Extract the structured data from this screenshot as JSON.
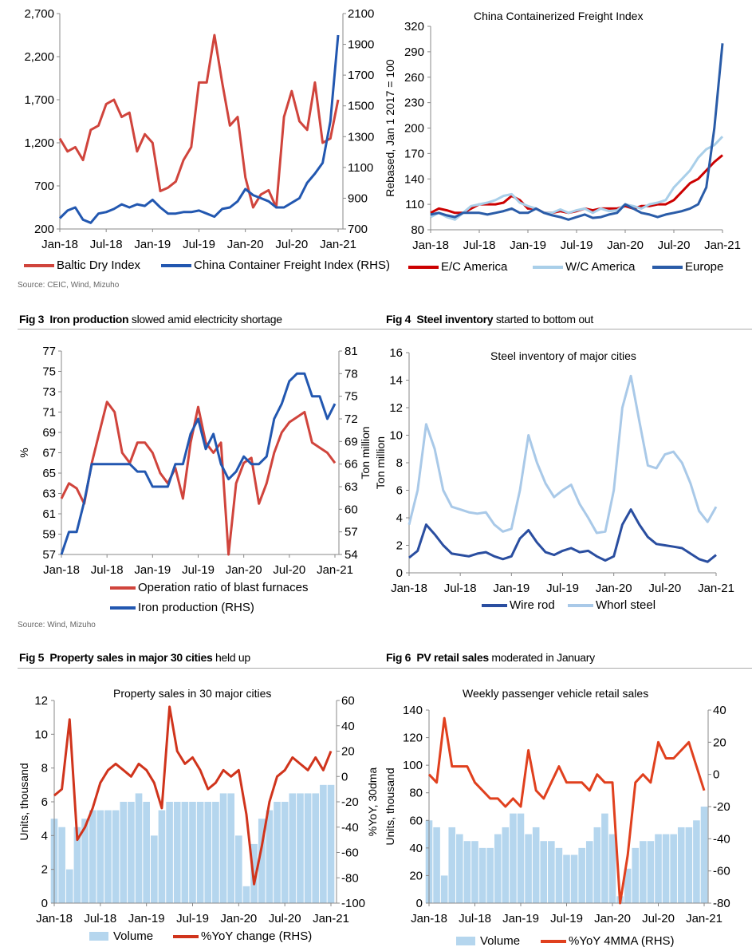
{
  "figures": {
    "fig1_source": "Source: CEIC, Wind, Mizuho",
    "fig3": {
      "num": "Fig 3",
      "bold": "Iron production",
      "rest": "slowed amid electricity shortage"
    },
    "fig4": {
      "num": "Fig 4",
      "bold": "Steel inventory",
      "rest": "started to bottom out"
    },
    "fig3_source": "Source: Wind, Mizuho",
    "fig5": {
      "num": "Fig 5",
      "bold": "Property sales in major 30 cities",
      "rest": "held up"
    },
    "fig6": {
      "num": "Fig 6",
      "bold": "PV retail sales",
      "rest": "moderated in January"
    }
  },
  "colors": {
    "red": "#d0443c",
    "blue": "#2257b0",
    "light_blue": "#a9cfe9",
    "dark_red": "#cc0000",
    "bar_blue": "#b5d6ee",
    "orange_red": "#e0401e"
  },
  "chart_data": [
    {
      "type": "line",
      "title": "",
      "xticks": [
        "Jan-18",
        "Jul-18",
        "Jan-19",
        "Jul-19",
        "Jan-20",
        "Jul-20",
        "Jan-21"
      ],
      "x": [
        "2018-01",
        "2018-02",
        "2018-03",
        "2018-04",
        "2018-05",
        "2018-06",
        "2018-07",
        "2018-08",
        "2018-09",
        "2018-10",
        "2018-11",
        "2018-12",
        "2019-01",
        "2019-02",
        "2019-03",
        "2019-04",
        "2019-05",
        "2019-06",
        "2019-07",
        "2019-08",
        "2019-09",
        "2019-10",
        "2019-11",
        "2019-12",
        "2020-01",
        "2020-02",
        "2020-03",
        "2020-04",
        "2020-05",
        "2020-06",
        "2020-07",
        "2020-08",
        "2020-09",
        "2020-10",
        "2020-11",
        "2020-12",
        "2021-01"
      ],
      "ylim": [
        200,
        2700
      ],
      "ytick_labels": [
        "200",
        "700",
        "1,200",
        "1,700",
        "2,200",
        "2,700"
      ],
      "y2lim": [
        700,
        2100
      ],
      "y2tick_labels": [
        "700",
        "900",
        "1100",
        "1300",
        "1500",
        "1700",
        "1900",
        "2100"
      ],
      "series": [
        {
          "name": "Baltic Dry Index",
          "axis": "left",
          "color": "#d0443c",
          "values": [
            1250,
            1100,
            1150,
            1000,
            1350,
            1400,
            1650,
            1700,
            1500,
            1550,
            1100,
            1300,
            1200,
            640,
            680,
            750,
            1000,
            1150,
            1900,
            1900,
            2450,
            1900,
            1400,
            1500,
            800,
            450,
            600,
            650,
            450,
            1500,
            1800,
            1450,
            1350,
            1900,
            1200,
            1250,
            1700
          ]
        },
        {
          "name": "China Container Freight Index (RHS)",
          "axis": "right",
          "color": "#2257b0",
          "values": [
            770,
            820,
            840,
            760,
            740,
            800,
            810,
            830,
            860,
            840,
            860,
            850,
            890,
            840,
            800,
            800,
            810,
            810,
            820,
            800,
            780,
            830,
            840,
            880,
            960,
            920,
            900,
            880,
            840,
            840,
            870,
            900,
            1000,
            1060,
            1130,
            1400,
            1960
          ]
        }
      ]
    },
    {
      "type": "line",
      "title": "China Containerized Freight Index",
      "ylabel": "Rebased, Jan 1 2017 = 100",
      "xticks": [
        "Jan-18",
        "Jul-18",
        "Jan-19",
        "Jul-19",
        "Jan-20",
        "Jul-20",
        "Jan-21"
      ],
      "x": [
        "2018-01",
        "2018-02",
        "2018-03",
        "2018-04",
        "2018-05",
        "2018-06",
        "2018-07",
        "2018-08",
        "2018-09",
        "2018-10",
        "2018-11",
        "2018-12",
        "2019-01",
        "2019-02",
        "2019-03",
        "2019-04",
        "2019-05",
        "2019-06",
        "2019-07",
        "2019-08",
        "2019-09",
        "2019-10",
        "2019-11",
        "2019-12",
        "2020-01",
        "2020-02",
        "2020-03",
        "2020-04",
        "2020-05",
        "2020-06",
        "2020-07",
        "2020-08",
        "2020-09",
        "2020-10",
        "2020-11",
        "2020-12",
        "2021-01"
      ],
      "ylim": [
        80,
        320
      ],
      "ytick_labels": [
        "80",
        "110",
        "140",
        "170",
        "200",
        "230",
        "260",
        "290",
        "320"
      ],
      "series": [
        {
          "name": "E/C America",
          "axis": "left",
          "color": "#cc0000",
          "values": [
            100,
            105,
            103,
            100,
            100,
            105,
            110,
            110,
            110,
            112,
            120,
            115,
            105,
            105,
            100,
            100,
            102,
            100,
            102,
            105,
            103,
            105,
            105,
            105,
            108,
            105,
            108,
            108,
            110,
            110,
            115,
            125,
            135,
            140,
            150,
            160,
            168
          ]
        },
        {
          "name": "W/C America",
          "axis": "left",
          "color": "#a9cfe9",
          "values": [
            95,
            100,
            95,
            92,
            100,
            108,
            110,
            112,
            115,
            120,
            122,
            112,
            108,
            105,
            100,
            100,
            104,
            100,
            103,
            105,
            100,
            105,
            102,
            103,
            110,
            108,
            105,
            110,
            112,
            115,
            130,
            140,
            150,
            165,
            175,
            180,
            190
          ]
        },
        {
          "name": "Europe",
          "axis": "left",
          "color": "#2a5ca8",
          "values": [
            98,
            100,
            97,
            95,
            100,
            100,
            100,
            98,
            100,
            102,
            105,
            100,
            100,
            105,
            100,
            97,
            95,
            92,
            95,
            98,
            94,
            95,
            98,
            100,
            110,
            105,
            100,
            98,
            95,
            98,
            100,
            102,
            105,
            110,
            130,
            200,
            300
          ]
        }
      ]
    },
    {
      "type": "line",
      "title": "",
      "ylabel": "%",
      "y2label": "Ton million",
      "xticks": [
        "Jan-18",
        "Jul-18",
        "Jan-19",
        "Jul-19",
        "Jan-20",
        "Jul-20",
        "Jan-21"
      ],
      "x": [
        "2018-01",
        "2018-02",
        "2018-03",
        "2018-04",
        "2018-05",
        "2018-06",
        "2018-07",
        "2018-08",
        "2018-09",
        "2018-10",
        "2018-11",
        "2018-12",
        "2019-01",
        "2019-02",
        "2019-03",
        "2019-04",
        "2019-05",
        "2019-06",
        "2019-07",
        "2019-08",
        "2019-09",
        "2019-10",
        "2019-11",
        "2019-12",
        "2020-01",
        "2020-02",
        "2020-03",
        "2020-04",
        "2020-05",
        "2020-06",
        "2020-07",
        "2020-08",
        "2020-09",
        "2020-10",
        "2020-11",
        "2020-12",
        "2021-01"
      ],
      "ylim": [
        57,
        77
      ],
      "ytick_labels": [
        "57",
        "59",
        "61",
        "63",
        "65",
        "67",
        "69",
        "71",
        "73",
        "75",
        "77"
      ],
      "y2lim": [
        54,
        81
      ],
      "y2tick_labels": [
        "54",
        "57",
        "60",
        "63",
        "66",
        "69",
        "72",
        "75",
        "78",
        "81"
      ],
      "series": [
        {
          "name": "Operation ratio of blast furnaces",
          "axis": "left",
          "color": "#d0443c",
          "values": [
            62.5,
            64,
            63.5,
            62,
            66,
            69,
            72,
            71,
            67,
            66,
            68,
            68,
            67,
            65,
            64,
            65.5,
            62.5,
            68,
            71.5,
            68,
            67,
            68,
            57,
            64,
            66,
            66.5,
            62,
            64,
            67,
            69,
            70,
            70.5,
            71,
            68,
            67.5,
            67,
            66
          ]
        },
        {
          "name": "Iron production (RHS)",
          "axis": "right",
          "color": "#2257b0",
          "values": [
            54,
            57,
            57,
            61,
            66,
            66,
            66,
            66,
            66,
            66,
            65,
            65,
            63,
            63,
            63,
            66,
            66,
            70,
            72,
            68,
            70,
            66,
            64,
            65,
            67,
            66,
            66,
            67,
            72,
            74,
            77,
            78,
            78,
            75,
            75,
            72,
            74
          ]
        }
      ]
    },
    {
      "type": "line",
      "title": "Steel inventory  of major cities",
      "ylabel": "Ton  million",
      "xticks": [
        "Jan-18",
        "Jul-18",
        "Jan-19",
        "Jul-19",
        "Jan-20",
        "Jul-20",
        "Jan-21"
      ],
      "x": [
        "2018-01",
        "2018-02",
        "2018-03",
        "2018-04",
        "2018-05",
        "2018-06",
        "2018-07",
        "2018-08",
        "2018-09",
        "2018-10",
        "2018-11",
        "2018-12",
        "2019-01",
        "2019-02",
        "2019-03",
        "2019-04",
        "2019-05",
        "2019-06",
        "2019-07",
        "2019-08",
        "2019-09",
        "2019-10",
        "2019-11",
        "2019-12",
        "2020-01",
        "2020-02",
        "2020-03",
        "2020-04",
        "2020-05",
        "2020-06",
        "2020-07",
        "2020-08",
        "2020-09",
        "2020-10",
        "2020-11",
        "2020-12",
        "2021-01"
      ],
      "ylim": [
        0,
        16
      ],
      "ytick_labels": [
        "0",
        "2",
        "4",
        "6",
        "8",
        "10",
        "12",
        "14",
        "16"
      ],
      "series": [
        {
          "name": "Wire rod",
          "axis": "left",
          "color": "#2a4ea0",
          "values": [
            1.1,
            1.6,
            3.5,
            2.8,
            2.0,
            1.4,
            1.3,
            1.2,
            1.4,
            1.5,
            1.2,
            1.0,
            1.2,
            2.5,
            3.1,
            2.2,
            1.5,
            1.3,
            1.6,
            1.8,
            1.5,
            1.6,
            1.2,
            0.9,
            1.2,
            3.5,
            4.6,
            3.5,
            2.6,
            2.1,
            2.0,
            1.9,
            1.8,
            1.4,
            1.0,
            0.8,
            1.3
          ]
        },
        {
          "name": "Whorl steel",
          "axis": "left",
          "color": "#a9c9e8",
          "values": [
            3.5,
            6.0,
            10.8,
            9.0,
            6.0,
            4.8,
            4.6,
            4.4,
            4.3,
            4.4,
            3.5,
            3.0,
            3.2,
            6.0,
            10.0,
            8.0,
            6.5,
            5.5,
            6.0,
            6.4,
            5.0,
            4.0,
            2.9,
            3.0,
            6.0,
            12.0,
            14.3,
            11.0,
            7.8,
            7.6,
            8.6,
            8.8,
            8.0,
            6.5,
            4.5,
            3.7,
            4.8
          ]
        }
      ]
    },
    {
      "type": "bar+line",
      "title": "Property sales in 30 major cities",
      "ylabel": "Units,  thousand",
      "y2label": "%YoY, 30dma",
      "xticks": [
        "Jan-18",
        "Jul-18",
        "Jan-19",
        "Jul-19",
        "Jan-20",
        "Jul-20",
        "Jan-21"
      ],
      "x": [
        "2018-01",
        "2018-02",
        "2018-03",
        "2018-04",
        "2018-05",
        "2018-06",
        "2018-07",
        "2018-08",
        "2018-09",
        "2018-10",
        "2018-11",
        "2018-12",
        "2019-01",
        "2019-02",
        "2019-03",
        "2019-04",
        "2019-05",
        "2019-06",
        "2019-07",
        "2019-08",
        "2019-09",
        "2019-10",
        "2019-11",
        "2019-12",
        "2020-01",
        "2020-02",
        "2020-03",
        "2020-04",
        "2020-05",
        "2020-06",
        "2020-07",
        "2020-08",
        "2020-09",
        "2020-10",
        "2020-11",
        "2020-12",
        "2021-01"
      ],
      "ylim": [
        0,
        12
      ],
      "ytick_labels": [
        "0",
        "2",
        "4",
        "6",
        "8",
        "10",
        "12"
      ],
      "y2lim": [
        -100,
        60
      ],
      "y2tick_labels": [
        "-100",
        "-80",
        "-60",
        "-40",
        "-20",
        "0",
        "20",
        "40",
        "60"
      ],
      "series": [
        {
          "name": "Volume",
          "axis": "left",
          "kind": "bar",
          "color": "#b5d6ee",
          "values": [
            5,
            4.5,
            2,
            4.5,
            5,
            5.5,
            5.5,
            5.5,
            5.5,
            6,
            6,
            6.5,
            6,
            4,
            5.5,
            6,
            6,
            6,
            6,
            6,
            6,
            6,
            6.5,
            6.5,
            4,
            1,
            3.5,
            5,
            5.5,
            6,
            6,
            6.5,
            6.5,
            6.5,
            6.5,
            7,
            7
          ]
        },
        {
          "name": "%YoY change (RHS)",
          "axis": "right",
          "kind": "line",
          "color": "#d0341c",
          "values": [
            -15,
            -10,
            45,
            -50,
            -40,
            -25,
            -5,
            5,
            10,
            5,
            0,
            10,
            5,
            -5,
            -25,
            55,
            20,
            10,
            15,
            5,
            -10,
            -5,
            5,
            0,
            5,
            -30,
            -85,
            -55,
            -20,
            0,
            5,
            15,
            10,
            5,
            15,
            5,
            20
          ]
        }
      ]
    },
    {
      "type": "bar+line",
      "title": "Weekly passenger  vehicle  retail sales",
      "ylabel": "Units, thousand",
      "xticks": [
        "Jan-18",
        "Jul-18",
        "Jan-19",
        "Jul-19",
        "Jan-20",
        "Jul-20",
        "Jan-21"
      ],
      "x": [
        "2018-01",
        "2018-02",
        "2018-03",
        "2018-04",
        "2018-05",
        "2018-06",
        "2018-07",
        "2018-08",
        "2018-09",
        "2018-10",
        "2018-11",
        "2018-12",
        "2019-01",
        "2019-02",
        "2019-03",
        "2019-04",
        "2019-05",
        "2019-06",
        "2019-07",
        "2019-08",
        "2019-09",
        "2019-10",
        "2019-11",
        "2019-12",
        "2020-01",
        "2020-02",
        "2020-03",
        "2020-04",
        "2020-05",
        "2020-06",
        "2020-07",
        "2020-08",
        "2020-09",
        "2020-10",
        "2020-11",
        "2020-12",
        "2021-01"
      ],
      "ylim": [
        0,
        140
      ],
      "ytick_labels": [
        "0",
        "20",
        "40",
        "60",
        "80",
        "100",
        "120",
        "140"
      ],
      "y2lim": [
        -80,
        40
      ],
      "y2tick_labels": [
        "-80",
        "-60",
        "-40",
        "-20",
        "0",
        "20",
        "40"
      ],
      "series": [
        {
          "name": "Volume",
          "axis": "left",
          "kind": "bar",
          "color": "#b5d6ee",
          "values": [
            60,
            55,
            20,
            55,
            50,
            45,
            45,
            40,
            40,
            50,
            55,
            65,
            65,
            50,
            55,
            45,
            45,
            40,
            35,
            35,
            40,
            45,
            55,
            65,
            50,
            5,
            25,
            40,
            45,
            45,
            50,
            50,
            50,
            55,
            55,
            60,
            70
          ]
        },
        {
          "name": "%YoY 4MMA (RHS)",
          "axis": "right",
          "kind": "line",
          "color": "#e0401e",
          "values": [
            0,
            -5,
            35,
            5,
            5,
            5,
            -5,
            -10,
            -15,
            -15,
            -20,
            -15,
            -20,
            15,
            -10,
            -15,
            -5,
            5,
            -5,
            -5,
            -5,
            -10,
            0,
            -5,
            -5,
            -80,
            -50,
            -5,
            0,
            -5,
            20,
            10,
            10,
            15,
            20,
            5,
            -10
          ]
        }
      ]
    }
  ]
}
